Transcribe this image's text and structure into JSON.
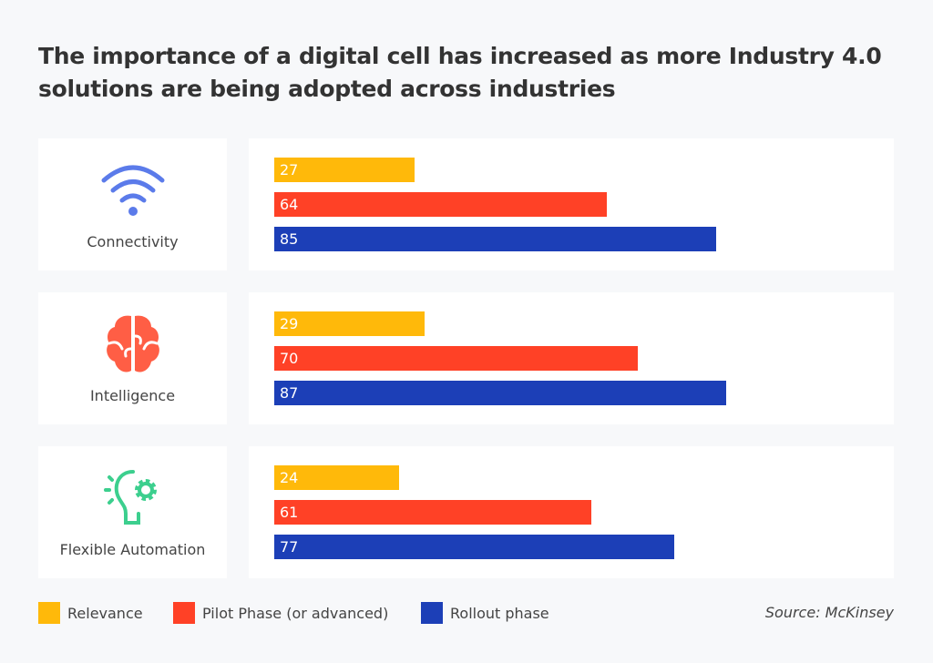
{
  "chart_data": {
    "type": "bar",
    "orientation": "horizontal",
    "title": "The importance of a digital cell has increased as more Industry 4.0 solutions are being adopted across industries",
    "categories": [
      "Connectivity",
      "Intelligence",
      "Flexible Automation"
    ],
    "category_icons": [
      "wifi-icon",
      "brain-icon",
      "lightbulb-gear-icon"
    ],
    "series": [
      {
        "name": "Relevance",
        "color": "#FFB90A",
        "values": [
          27,
          29,
          24
        ]
      },
      {
        "name": "Pilot Phase (or advanced)",
        "color": "#FF4126",
        "values": [
          64,
          70,
          61
        ]
      },
      {
        "name": "Rollout phase",
        "color": "#1C3FB7",
        "values": [
          85,
          87,
          77
        ]
      }
    ],
    "legend": "bottom-left",
    "source": "Source: McKinsey",
    "grid": false
  }
}
